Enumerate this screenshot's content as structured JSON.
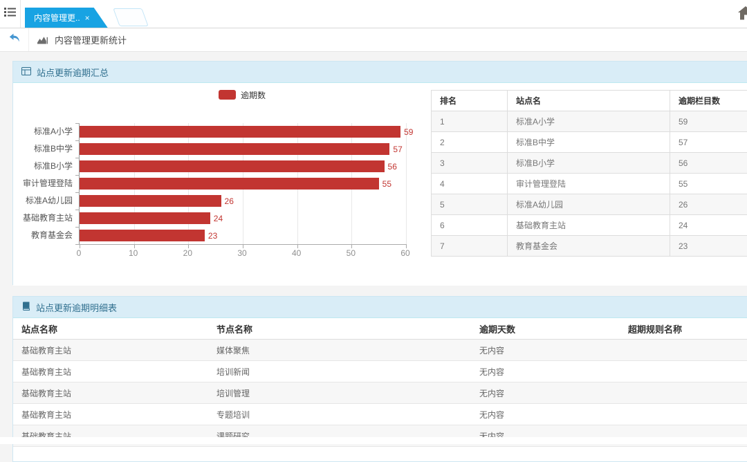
{
  "topbar": {
    "tab_label": "内容管理更..",
    "tab_close": "×"
  },
  "toolbar": {
    "title": "内容管理更新统计"
  },
  "summary_panel": {
    "title": "站点更新逾期汇总",
    "table": {
      "headers": [
        "排名",
        "站点名",
        "逾期栏目数"
      ],
      "rows": [
        [
          "1",
          "标准A小学",
          "59"
        ],
        [
          "2",
          "标准B中学",
          "57"
        ],
        [
          "3",
          "标准B小学",
          "56"
        ],
        [
          "4",
          "审计管理登陆",
          "55"
        ],
        [
          "5",
          "标准A幼儿园",
          "26"
        ],
        [
          "6",
          "基础教育主站",
          "24"
        ],
        [
          "7",
          "教育基金会",
          "23"
        ]
      ]
    }
  },
  "chart_data": {
    "type": "bar",
    "orientation": "horizontal",
    "title": "",
    "series_name": "逾期数",
    "categories": [
      "标准A小学",
      "标准B中学",
      "标准B小学",
      "审计管理登陆",
      "标准A幼儿园",
      "基础教育主站",
      "教育基金会"
    ],
    "values": [
      59,
      57,
      56,
      55,
      26,
      24,
      23
    ],
    "xlim": [
      0,
      60
    ],
    "x_ticks": [
      0,
      10,
      20,
      30,
      40,
      50,
      60
    ],
    "bar_color": "#c23531",
    "legend_position": "top",
    "grid": true
  },
  "detail_panel": {
    "title": "站点更新逾期明细表",
    "table": {
      "headers": [
        "站点名称",
        "节点名称",
        "逾期天数",
        "超期规则名称"
      ],
      "rows": [
        [
          "基础教育主站",
          "媒体聚焦",
          "无内容",
          ""
        ],
        [
          "基础教育主站",
          "培训新闻",
          "无内容",
          ""
        ],
        [
          "基础教育主站",
          "培训管理",
          "无内容",
          ""
        ],
        [
          "基础教育主站",
          "专题培训",
          "无内容",
          ""
        ],
        [
          "基础教育主站",
          "课题研究",
          "无内容",
          ""
        ]
      ]
    }
  },
  "colors": {
    "accent_blue": "#18a3e3",
    "bar_red": "#c23531",
    "panel_header_bg": "#d9edf7",
    "panel_border": "#bce8f1",
    "panel_header_text": "#31708f"
  }
}
